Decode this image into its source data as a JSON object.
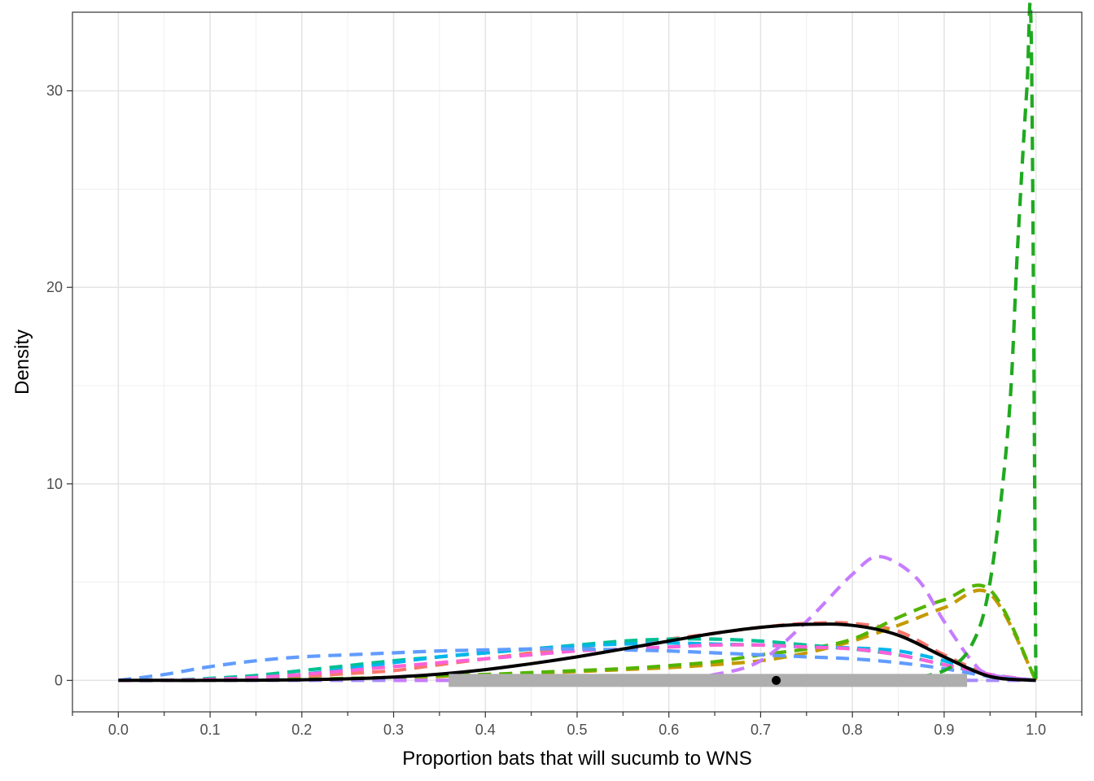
{
  "chart_data": {
    "type": "line",
    "title": "",
    "xlabel": "Proportion bats that will sucumb to WNS",
    "ylabel": "Density",
    "xlim": [
      -0.05,
      1.05
    ],
    "ylim": [
      -1.6,
      34.0
    ],
    "x_ticks": [
      0.0,
      0.1,
      0.2,
      0.3,
      0.4,
      0.5,
      0.6,
      0.7,
      0.8,
      0.9,
      1.0
    ],
    "x_tick_labels": [
      "0.0",
      "0.1",
      "0.2",
      "0.3",
      "0.4",
      "0.5",
      "0.6",
      "0.7",
      "0.8",
      "0.9",
      "1.0"
    ],
    "x_minor_ticks": [
      -0.05,
      0.05,
      0.15,
      0.25,
      0.35,
      0.45,
      0.55,
      0.65,
      0.75,
      0.85,
      0.95,
      1.05
    ],
    "y_ticks": [
      0,
      10,
      20,
      30
    ],
    "y_tick_labels": [
      "0",
      "10",
      "20",
      "30"
    ],
    "y_minor_grid": [
      5,
      15,
      25
    ],
    "grid": true,
    "legend": "none",
    "x_grid_density": [
      0.0,
      0.05,
      0.1,
      0.15,
      0.2,
      0.25,
      0.3,
      0.35,
      0.4,
      0.45,
      0.5,
      0.55,
      0.6,
      0.65,
      0.7,
      0.75,
      0.8,
      0.85,
      0.9,
      0.95,
      1.0
    ],
    "series": [
      {
        "color": "#F8766D",
        "style": "dashed",
        "values": [
          0.0,
          0.0,
          0.05,
          0.1,
          0.2,
          0.35,
          0.5,
          0.8,
          1.1,
          1.4,
          1.7,
          1.9,
          2.1,
          2.4,
          2.7,
          2.9,
          2.9,
          2.5,
          1.3,
          0.3,
          0.0
        ]
      },
      {
        "color": "#C49A00",
        "style": "dashed",
        "values": [
          0.0,
          0.0,
          0.0,
          0.02,
          0.05,
          0.1,
          0.15,
          0.2,
          0.3,
          0.35,
          0.45,
          0.55,
          0.65,
          0.8,
          1.0,
          1.4,
          2.0,
          2.8,
          3.7,
          4.4,
          0.0
        ]
      },
      {
        "color": "#53B400",
        "style": "dashed",
        "values": [
          0.0,
          0.0,
          0.0,
          0.02,
          0.05,
          0.1,
          0.15,
          0.25,
          0.3,
          0.4,
          0.5,
          0.6,
          0.75,
          0.95,
          1.3,
          1.6,
          2.1,
          3.2,
          4.1,
          4.6,
          0.0
        ]
      },
      {
        "color": "#00C094",
        "style": "dashed",
        "values": [
          0.0,
          0.0,
          0.1,
          0.25,
          0.5,
          0.75,
          1.0,
          1.2,
          1.4,
          1.6,
          1.8,
          2.0,
          2.1,
          2.1,
          2.0,
          1.8,
          1.6,
          1.3,
          0.8,
          0.3,
          0.0
        ]
      },
      {
        "color": "#00B6EB",
        "style": "dashed",
        "values": [
          0.0,
          0.0,
          0.05,
          0.15,
          0.3,
          0.6,
          0.9,
          1.2,
          1.4,
          1.6,
          1.75,
          1.85,
          1.9,
          1.85,
          1.8,
          1.7,
          1.65,
          1.5,
          1.0,
          0.3,
          0.0
        ]
      },
      {
        "color": "#A58AFF",
        "style": "dashed",
        "values": [
          0.0,
          0.0,
          0.0,
          0.0,
          0.0,
          0.0,
          0.0,
          0.0,
          0.0,
          0.0,
          0.0,
          0.0,
          0.0,
          0.0,
          0.0,
          0.0,
          0.0,
          0.0,
          0.0,
          0.0,
          0.0
        ]
      },
      {
        "color": "#FB61D7",
        "style": "dashed",
        "values": [
          0.0,
          0.0,
          0.05,
          0.15,
          0.3,
          0.5,
          0.7,
          0.9,
          1.1,
          1.3,
          1.5,
          1.6,
          1.7,
          1.8,
          1.8,
          1.7,
          1.6,
          1.3,
          0.8,
          0.3,
          0.0
        ]
      },
      {
        "color": "#619CFF",
        "style": "dashed",
        "values": [
          0.0,
          0.3,
          0.7,
          1.0,
          1.2,
          1.3,
          1.4,
          1.5,
          1.55,
          1.6,
          1.6,
          1.55,
          1.5,
          1.4,
          1.3,
          1.2,
          1.1,
          0.9,
          0.6,
          0.2,
          0.0
        ]
      }
    ],
    "sharp_series": [
      {
        "color": "#C77CFF",
        "style": "dashed",
        "x": [
          0.3,
          0.4,
          0.5,
          0.6,
          0.65,
          0.7,
          0.75,
          0.8,
          0.83,
          0.87,
          0.9,
          0.93,
          0.95,
          1.0
        ],
        "values": [
          0.0,
          0.0,
          0.0,
          0.05,
          0.3,
          1.0,
          3.0,
          5.4,
          6.3,
          5.2,
          3.0,
          1.0,
          0.3,
          0.0
        ]
      },
      {
        "color": "#1FAA1F",
        "style": "dashed",
        "x": [
          0.85,
          0.9,
          0.93,
          0.95,
          0.97,
          0.98,
          0.99,
          0.995,
          1.0
        ],
        "values": [
          0.0,
          0.5,
          1.8,
          5.0,
          13.0,
          22.0,
          30.0,
          32.5,
          0.0
        ]
      },
      {
        "color": "#000000",
        "style": "solid",
        "x": [
          0.0,
          0.05,
          0.1,
          0.15,
          0.2,
          0.25,
          0.3,
          0.35,
          0.4,
          0.45,
          0.5,
          0.55,
          0.6,
          0.65,
          0.7,
          0.75,
          0.8,
          0.85,
          0.9,
          0.95,
          1.0
        ],
        "values": [
          0.0,
          0.0,
          0.0,
          0.01,
          0.03,
          0.08,
          0.17,
          0.32,
          0.55,
          0.85,
          1.2,
          1.6,
          2.0,
          2.4,
          2.7,
          2.85,
          2.8,
          2.3,
          1.2,
          0.2,
          0.0
        ]
      }
    ],
    "interval": {
      "low": 0.36,
      "high": 0.925,
      "point": 0.717,
      "y": 0,
      "color": "#AEAEAE"
    }
  }
}
